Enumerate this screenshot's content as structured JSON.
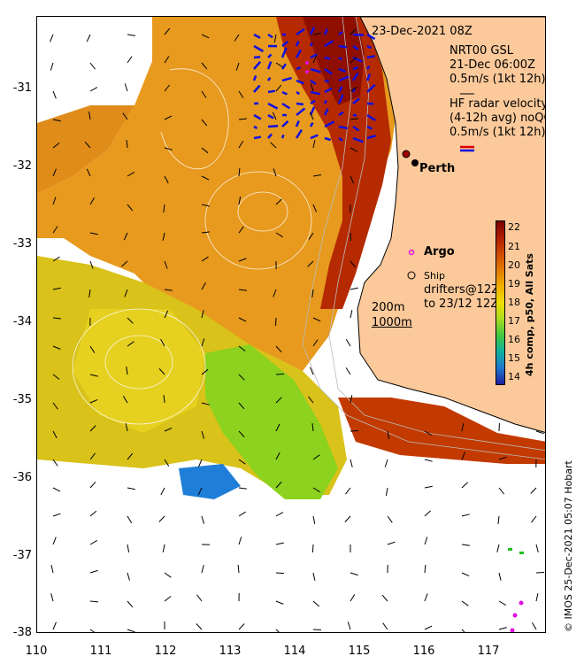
{
  "header": {
    "date": "23-Dec-2021 08Z"
  },
  "legend": {
    "gsl_title": "NRT00 GSL",
    "gsl_time": "21-Dec 06:00Z",
    "gsl_scale": "0.5m/s (1kt 12h)",
    "hf_title": "HF radar velocity",
    "hf_avg": "(4-12h avg) noQC",
    "hf_scale": "0.5m/s (1kt 12h)",
    "argo": "Argo",
    "ship": "Ship",
    "drifters_1": "drifters@12Z",
    "drifters_2": "to 23/12 12Z",
    "isobath_200": "200m",
    "isobath_1000": "1000m",
    "perth": "Perth"
  },
  "colorbar": {
    "ticks": [
      "22",
      "21",
      "20",
      "19",
      "18",
      "17",
      "16",
      "15",
      "14"
    ],
    "title": "4h comp, p50, All Sats"
  },
  "axes": {
    "y_ticks": [
      "-31",
      "-32",
      "-33",
      "-34",
      "-35",
      "-36",
      "-37",
      "-38"
    ],
    "x_ticks": [
      "110",
      "111",
      "112",
      "113",
      "114",
      "115",
      "116",
      "117"
    ]
  },
  "credit": "© IMOS 25-Dec-2021 05:07 Hobart",
  "colors": {
    "land": "#fbc99a",
    "sst_warm": "#c23a00",
    "sst_mid": "#e79a1e",
    "sst_cool": "#9fd21e",
    "sst_cold": "#1f7ed8",
    "hf_vectors": "#1010e0",
    "argo": "#e010e0"
  }
}
